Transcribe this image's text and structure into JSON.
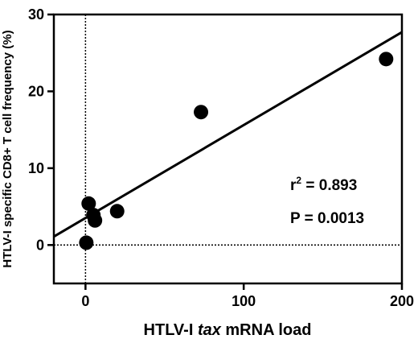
{
  "chart_data": {
    "type": "scatter",
    "xlabel": {
      "prefix": "HTLV-I ",
      "italic": "tax",
      "suffix": " mRNA load"
    },
    "ylabel": "HTLV-I specific CD8+ T cell frequency (%)",
    "xlim": [
      -20,
      200
    ],
    "ylim": [
      -5,
      30
    ],
    "xticks": [
      0,
      100,
      200
    ],
    "yticks": [
      0,
      10,
      20,
      30
    ],
    "x_ticklabels": [
      "0",
      "100",
      "200"
    ],
    "y_ticklabels": [
      "0",
      "10",
      "20",
      "30"
    ],
    "reference_lines": {
      "x": 0,
      "y": 0,
      "style": "dotted"
    },
    "points": [
      {
        "x": 0.5,
        "y": 0.3
      },
      {
        "x": 2,
        "y": 5.4
      },
      {
        "x": 5,
        "y": 3.9
      },
      {
        "x": 6,
        "y": 3.2
      },
      {
        "x": 20,
        "y": 4.4
      },
      {
        "x": 73,
        "y": 17.3
      },
      {
        "x": 190,
        "y": 24.2
      }
    ],
    "regression_line": {
      "x": [
        -20,
        200
      ],
      "y": [
        1.1,
        27.7
      ]
    },
    "annotations": {
      "r2": {
        "label": "r",
        "sup": "2",
        "value": " = 0.893"
      },
      "p": "P = 0.0013"
    },
    "grid": false,
    "legend": "none"
  }
}
